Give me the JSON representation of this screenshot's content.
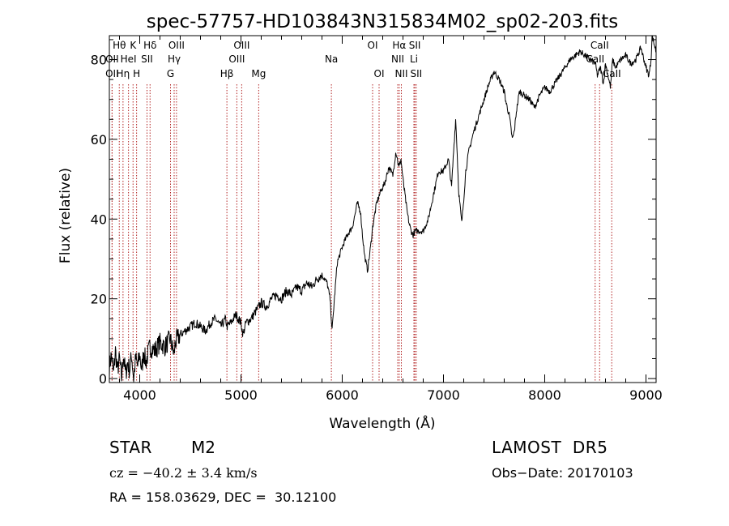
{
  "chart_data": {
    "type": "line",
    "title": "spec-57757-HD103843N315834M02_sp02-203.fits",
    "xlabel": "Wavelength (Å)",
    "ylabel": "Flux (relative)",
    "xlim": [
      3700,
      9100
    ],
    "ylim": [
      -1,
      86
    ],
    "xticks": [
      4000,
      5000,
      6000,
      7000,
      8000,
      9000
    ],
    "yticks": [
      0,
      20,
      40,
      60,
      80
    ],
    "grid": false,
    "line_color": "#000000",
    "marker_color": "#b22222",
    "series": [
      {
        "x": [
          3700,
          3720,
          3740,
          3760,
          3780,
          3800,
          3820,
          3840,
          3860,
          3880,
          3900,
          3920,
          3940,
          3960,
          3980,
          4000,
          4020,
          4040,
          4060,
          4080,
          4100,
          4150,
          4200,
          4250,
          4300,
          4340,
          4350,
          4400,
          4450,
          4500,
          4550,
          4600,
          4650,
          4700,
          4750,
          4800,
          4850,
          4860,
          4900,
          4950,
          5000,
          5020,
          5050,
          5100,
          5150,
          5200,
          5250,
          5300,
          5350,
          5400,
          5450,
          5500,
          5550,
          5600,
          5650,
          5700,
          5750,
          5800,
          5850,
          5880,
          5900,
          5920,
          5950,
          6000,
          6050,
          6100,
          6150,
          6180,
          6200,
          6220,
          6250,
          6280,
          6300,
          6340,
          6380,
          6420,
          6460,
          6500,
          6530,
          6560,
          6580,
          6600,
          6620,
          6640,
          6660,
          6680,
          6700,
          6720,
          6750,
          6800,
          6850,
          6900,
          6950,
          7000,
          7050,
          7080,
          7100,
          7120,
          7130,
          7150,
          7180,
          7200,
          7220,
          7250,
          7300,
          7350,
          7400,
          7450,
          7500,
          7550,
          7600,
          7620,
          7650,
          7680,
          7700,
          7720,
          7750,
          7800,
          7850,
          7900,
          7950,
          8000,
          8050,
          8100,
          8150,
          8200,
          8250,
          8300,
          8350,
          8400,
          8450,
          8500,
          8520,
          8550,
          8580,
          8600,
          8650,
          8670,
          8700,
          8750,
          8800,
          8850,
          8900,
          8950,
          9000,
          9030,
          9050,
          9060,
          9080,
          9100
        ],
        "y": [
          3,
          6,
          1,
          7,
          2,
          5,
          0,
          6,
          1,
          4,
          2,
          6,
          0,
          5,
          3,
          6,
          2,
          7,
          4,
          6,
          8,
          7,
          9,
          8,
          10,
          6,
          9,
          11,
          12,
          13,
          14,
          13,
          12,
          14,
          15,
          13,
          15,
          13,
          14,
          16,
          14,
          11,
          14,
          15,
          17,
          19,
          18,
          20,
          21,
          20,
          22,
          21,
          23,
          22,
          24,
          23,
          25,
          26,
          24,
          20,
          12,
          19,
          29,
          33,
          36,
          38,
          44,
          42,
          36,
          31,
          27,
          33,
          38,
          44,
          47,
          49,
          53,
          51,
          57,
          53,
          55,
          50,
          46,
          42,
          39,
          37,
          36,
          37,
          37,
          37,
          40,
          46,
          52,
          52,
          55,
          48,
          57,
          65,
          60,
          47,
          39,
          45,
          52,
          57,
          62,
          66,
          70,
          74,
          77,
          75,
          72,
          69,
          66,
          60,
          62,
          67,
          72,
          71,
          70,
          68,
          71,
          73,
          72,
          74,
          76,
          78,
          80,
          81,
          82,
          81,
          80,
          79,
          76,
          78,
          74,
          79,
          73,
          80,
          78,
          80,
          81,
          79,
          80,
          83,
          78,
          76,
          80,
          86,
          84,
          82
        ]
      }
    ],
    "lines": [
      {
        "name": "Hθ",
        "x": 3798,
        "row": 1
      },
      {
        "name": "OII",
        "x": 3727,
        "row": 2
      },
      {
        "name": "OII",
        "x": 3727,
        "row": 3
      },
      {
        "name": "K",
        "x": 3934,
        "row": 1
      },
      {
        "name": "HeI",
        "x": 3889,
        "row": 2
      },
      {
        "name": "Hη",
        "x": 3835,
        "row": 3
      },
      {
        "name": "Hδ",
        "x": 4102,
        "row": 1
      },
      {
        "name": "SII",
        "x": 4072,
        "row": 2
      },
      {
        "name": "H",
        "x": 3969,
        "row": 3
      },
      {
        "name": "OIII",
        "x": 4363,
        "row": 1
      },
      {
        "name": "Hγ",
        "x": 4340,
        "row": 2
      },
      {
        "name": "G",
        "x": 4304,
        "row": 3
      },
      {
        "name": "OIII",
        "x": 5007,
        "row": 1
      },
      {
        "name": "OIII",
        "x": 4959,
        "row": 2
      },
      {
        "name": "Hβ",
        "x": 4861,
        "row": 3
      },
      {
        "name": "Mg",
        "x": 5175,
        "row": 3
      },
      {
        "name": "Na",
        "x": 5893,
        "row": 2
      },
      {
        "name": "OI",
        "x": 6300,
        "row": 1
      },
      {
        "name": "OI",
        "x": 6364,
        "row": 3
      },
      {
        "name": "Hα",
        "x": 6563,
        "row": 1
      },
      {
        "name": "NII",
        "x": 6548,
        "row": 2
      },
      {
        "name": "NII",
        "x": 6584,
        "row": 3
      },
      {
        "name": "SII",
        "x": 6717,
        "row": 1
      },
      {
        "name": "Li",
        "x": 6708,
        "row": 2
      },
      {
        "name": "SII",
        "x": 6731,
        "row": 3
      },
      {
        "name": "CaII",
        "x": 8542,
        "row": 1
      },
      {
        "name": "CaII",
        "x": 8498,
        "row": 2
      },
      {
        "name": "CaII",
        "x": 8662,
        "row": 3
      }
    ]
  },
  "info": {
    "object_class": "STAR",
    "subclass": "M2",
    "survey": "LAMOST  DR5",
    "cz": "cz = −40.2 ± 3.4 km/s",
    "obs_date": "Obs−Date: 20170103",
    "radec": "RA = 158.03629, DEC =  30.12100"
  }
}
